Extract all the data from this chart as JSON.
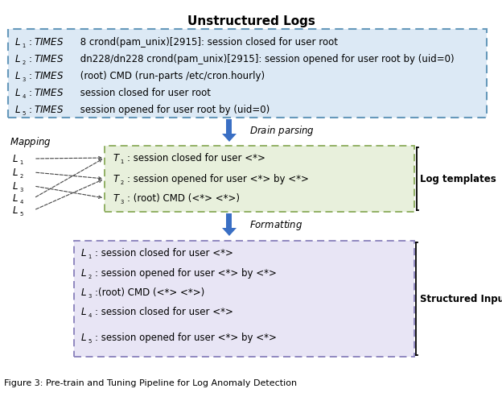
{
  "title": "Unstructured Logs",
  "box1_color": "#dce9f5",
  "box1_border": "#6699bb",
  "box1_lines": [
    [
      ": ",
      "TIMES",
      " 8 crond(pam_unix)[2915]: session closed for user root"
    ],
    [
      ": ",
      "TIMES",
      " dn228/dn228 crond(pam_unix)[2915]: session opened for user root by (uid=0)"
    ],
    [
      ": ",
      "TIMES",
      " (root) CMD (run-parts /etc/cron.hourly)"
    ],
    [
      ": ",
      "TIMES",
      " session closed for user root"
    ],
    [
      ": ",
      "TIMES",
      " session opened for user root by (uid=0)"
    ]
  ],
  "arrow1_label": "Drain parsing",
  "box2_color": "#e8f0dc",
  "box2_border": "#8aab5a",
  "box2_lines": [
    ": session closed for user <*>",
    ": session opened for user <*> by <*>",
    ": (root) CMD (<*> <*>)"
  ],
  "box2_label": "Log templates",
  "mapping_label": "Mapping",
  "arrow2_label": "Formatting",
  "box3_color": "#e8e5f5",
  "box3_border": "#8880bb",
  "box3_lines": [
    ": session closed for user <*>",
    ": session opened for user <*> by <*>",
    ":(root) CMD (<*> <*>)",
    ": session closed for user <*>",
    ": session opened for user <*> by <*>"
  ],
  "box3_label": "Structured Inputs",
  "fig_caption": "Figure 3: Pre-train and Tuning Pipeline for Log Anomaly Detection",
  "arrow_color": "#3a6fc4",
  "dashed_color": "#444444",
  "background": "#ffffff"
}
